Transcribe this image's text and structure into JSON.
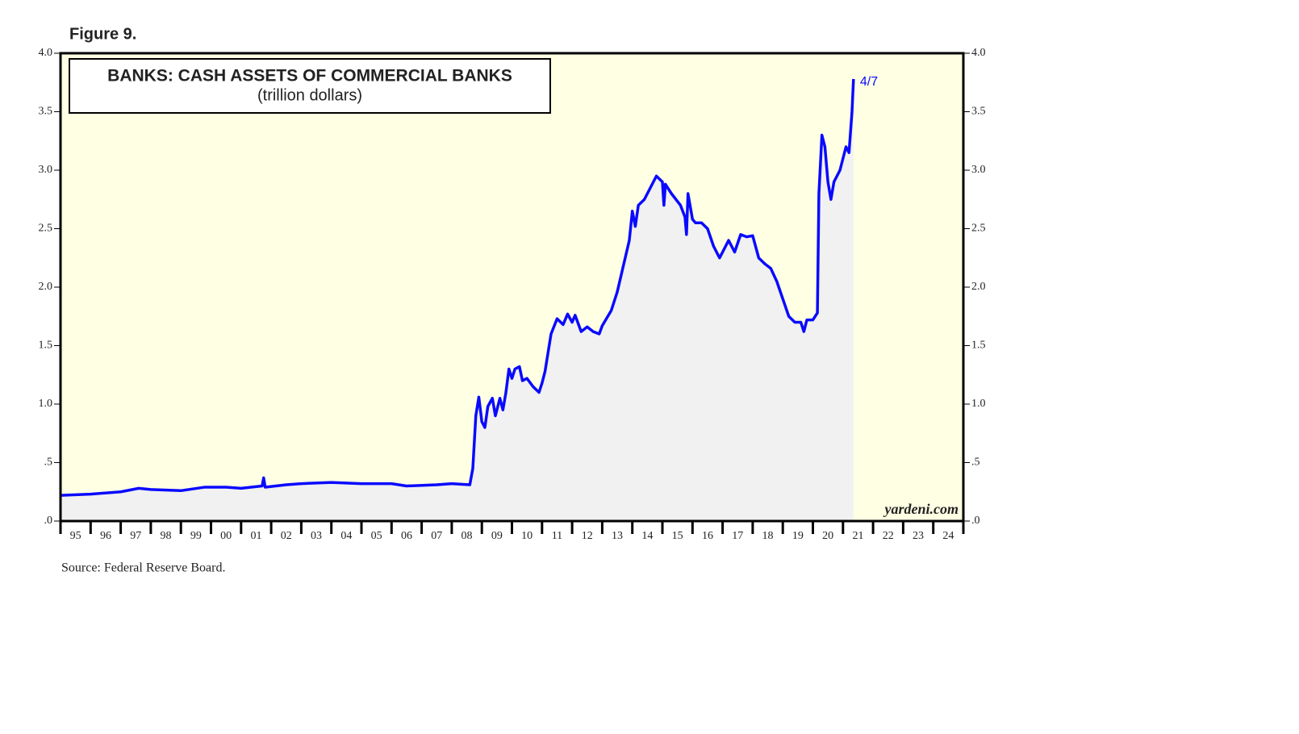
{
  "chart_data": {
    "type": "line",
    "figure_label": "Figure 9.",
    "title": "BANKS: CASH ASSETS OF COMMERCIAL BANKS",
    "subtitle": "(trillion dollars)",
    "annotation": "4/7",
    "watermark": "yardeni.com",
    "source": "Source: Federal Reserve Board.",
    "background": "#ffffe4",
    "area_color": "#f1f1f1",
    "xlim": [
      1995,
      2025
    ],
    "xticks": [
      {
        "value": 1995.5,
        "label": "95"
      },
      {
        "value": 1996.5,
        "label": "96"
      },
      {
        "value": 1997.5,
        "label": "97"
      },
      {
        "value": 1998.5,
        "label": "98"
      },
      {
        "value": 1999.5,
        "label": "99"
      },
      {
        "value": 2000.5,
        "label": "00"
      },
      {
        "value": 2001.5,
        "label": "01"
      },
      {
        "value": 2002.5,
        "label": "02"
      },
      {
        "value": 2003.5,
        "label": "03"
      },
      {
        "value": 2004.5,
        "label": "04"
      },
      {
        "value": 2005.5,
        "label": "05"
      },
      {
        "value": 2006.5,
        "label": "06"
      },
      {
        "value": 2007.5,
        "label": "07"
      },
      {
        "value": 2008.5,
        "label": "08"
      },
      {
        "value": 2009.5,
        "label": "09"
      },
      {
        "value": 2010.5,
        "label": "10"
      },
      {
        "value": 2011.5,
        "label": "11"
      },
      {
        "value": 2012.5,
        "label": "12"
      },
      {
        "value": 2013.5,
        "label": "13"
      },
      {
        "value": 2014.5,
        "label": "14"
      },
      {
        "value": 2015.5,
        "label": "15"
      },
      {
        "value": 2016.5,
        "label": "16"
      },
      {
        "value": 2017.5,
        "label": "17"
      },
      {
        "value": 2018.5,
        "label": "18"
      },
      {
        "value": 2019.5,
        "label": "19"
      },
      {
        "value": 2020.5,
        "label": "20"
      },
      {
        "value": 2021.5,
        "label": "21"
      },
      {
        "value": 2022.5,
        "label": "22"
      },
      {
        "value": 2023.5,
        "label": "23"
      },
      {
        "value": 2024.5,
        "label": "24"
      }
    ],
    "ylim": [
      0,
      4
    ],
    "yticks": [
      {
        "value": 0,
        "label": ".0"
      },
      {
        "value": 0.5,
        "label": ".5"
      },
      {
        "value": 1,
        "label": "1.0"
      },
      {
        "value": 1.5,
        "label": "1.5"
      },
      {
        "value": 2,
        "label": "2.0"
      },
      {
        "value": 2.5,
        "label": "2.5"
      },
      {
        "value": 3,
        "label": "3.0"
      },
      {
        "value": 3.5,
        "label": "3.5"
      },
      {
        "value": 4,
        "label": "4.0"
      }
    ],
    "x": [
      1995.0,
      1996.0,
      1997.0,
      1997.6,
      1998.0,
      1999.0,
      1999.8,
      2000.5,
      2001.0,
      2001.7,
      2001.75,
      2001.8,
      2002.5,
      2003.0,
      2004.0,
      2005.0,
      2006.0,
      2006.5,
      2007.5,
      2008.0,
      2008.6,
      2008.7,
      2008.8,
      2008.9,
      2009.0,
      2009.1,
      2009.2,
      2009.35,
      2009.45,
      2009.6,
      2009.7,
      2009.8,
      2009.9,
      2010.0,
      2010.1,
      2010.25,
      2010.35,
      2010.5,
      2010.7,
      2010.9,
      2011.0,
      2011.1,
      2011.3,
      2011.5,
      2011.7,
      2011.85,
      2012.0,
      2012.1,
      2012.3,
      2012.5,
      2012.7,
      2012.9,
      2013.0,
      2013.3,
      2013.5,
      2013.7,
      2013.9,
      2014.0,
      2014.1,
      2014.2,
      2014.4,
      2014.6,
      2014.8,
      2015.0,
      2015.05,
      2015.1,
      2015.3,
      2015.6,
      2015.75,
      2015.8,
      2015.85,
      2016.0,
      2016.1,
      2016.3,
      2016.5,
      2016.7,
      2016.9,
      2017.0,
      2017.2,
      2017.4,
      2017.6,
      2017.8,
      2018.0,
      2018.2,
      2018.4,
      2018.6,
      2018.8,
      2019.0,
      2019.2,
      2019.4,
      2019.6,
      2019.7,
      2019.8,
      2020.0,
      2020.15,
      2020.2,
      2020.3,
      2020.4,
      2020.5,
      2020.6,
      2020.7,
      2020.9,
      2021.0,
      2021.1,
      2021.2,
      2021.3,
      2021.35
    ],
    "series": [
      {
        "name": "Cash assets",
        "color": "#0a0aff",
        "values": [
          0.22,
          0.23,
          0.25,
          0.28,
          0.27,
          0.26,
          0.29,
          0.29,
          0.28,
          0.3,
          0.37,
          0.29,
          0.31,
          0.32,
          0.33,
          0.32,
          0.32,
          0.3,
          0.31,
          0.32,
          0.31,
          0.45,
          0.9,
          1.06,
          0.85,
          0.8,
          0.98,
          1.05,
          0.9,
          1.05,
          0.95,
          1.1,
          1.3,
          1.22,
          1.3,
          1.32,
          1.2,
          1.22,
          1.15,
          1.1,
          1.18,
          1.28,
          1.6,
          1.73,
          1.68,
          1.77,
          1.7,
          1.76,
          1.62,
          1.66,
          1.62,
          1.6,
          1.67,
          1.8,
          1.96,
          2.18,
          2.4,
          2.65,
          2.52,
          2.7,
          2.75,
          2.85,
          2.95,
          2.9,
          2.7,
          2.88,
          2.8,
          2.7,
          2.6,
          2.45,
          2.8,
          2.58,
          2.55,
          2.55,
          2.5,
          2.35,
          2.25,
          2.3,
          2.4,
          2.3,
          2.45,
          2.43,
          2.44,
          2.25,
          2.2,
          2.16,
          2.05,
          1.9,
          1.75,
          1.7,
          1.7,
          1.62,
          1.72,
          1.72,
          1.78,
          2.8,
          3.3,
          3.2,
          2.9,
          2.75,
          2.9,
          3.0,
          3.1,
          3.2,
          3.15,
          3.5,
          3.78
        ]
      }
    ]
  }
}
